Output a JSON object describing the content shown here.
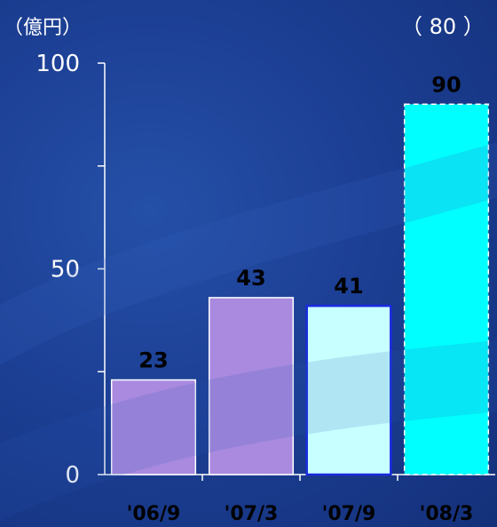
{
  "chart_data": {
    "type": "bar",
    "unit_label": "（億円）",
    "annotation": "（ 80 ）",
    "categories": [
      "'06/9",
      "'07/3",
      "'07/9",
      "'08/3"
    ],
    "values": [
      23,
      43,
      41,
      90
    ],
    "value_labels": [
      "23",
      "43",
      "41",
      "90"
    ],
    "ylim": [
      0,
      100
    ],
    "yticks": [
      0,
      50,
      100
    ],
    "y_minor_ticks": [
      25,
      75
    ],
    "bar_colors": [
      "#a98adf",
      "#a98adf",
      "#c8ffff",
      "#00ffff"
    ],
    "bar_outlines": [
      "#ffffff",
      "#ffffff",
      "#1a2ae0",
      "#ffffff"
    ],
    "bar_outline_dashed": [
      false,
      false,
      false,
      true
    ],
    "colors": {
      "text": "#ffffff",
      "value_label": "#000000",
      "axis": "#ffffff"
    }
  }
}
